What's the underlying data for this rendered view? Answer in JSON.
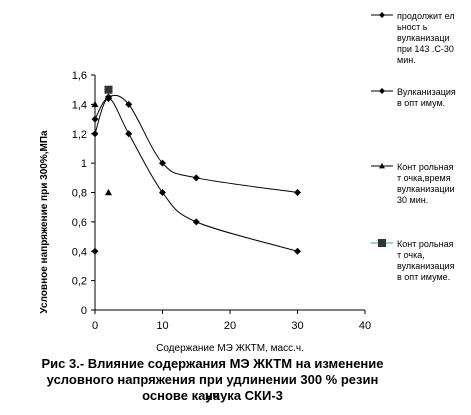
{
  "chart_data": {
    "type": "line",
    "xlabel": "Содержание МЭ ЖКТМ, масс.ч.",
    "ylabel": "Условное напряжение при 300%,МПа",
    "xlim": [
      0,
      40
    ],
    "ylim": [
      0,
      1.6
    ],
    "x_ticks": [
      "0",
      "10",
      "20",
      "30",
      "40"
    ],
    "y_ticks": [
      "0",
      "0,2",
      "0,4",
      "0,6",
      "0,8",
      "1",
      "1,2",
      "1,4",
      "1,6"
    ],
    "grid": false,
    "legend_position": "right",
    "series": [
      {
        "name_lines": [
          "продолжит ел",
          "ьност ь",
          "вулканизаци",
          "при 143 .С-30",
          "мин."
        ],
        "marker": "diamond",
        "line": "smooth",
        "color": "#000000",
        "points": [
          [
            0,
            1.2
          ],
          [
            2,
            1.44
          ],
          [
            5,
            1.2
          ],
          [
            10,
            0.8
          ],
          [
            15,
            0.6
          ],
          [
            30,
            0.4
          ]
        ]
      },
      {
        "name_lines": [
          "Вулканизация",
          "в опт имум."
        ],
        "marker": "diamond",
        "line": "smooth",
        "color": "#000000",
        "points": [
          [
            0,
            1.3
          ],
          [
            2,
            1.45
          ],
          [
            5,
            1.4
          ],
          [
            10,
            1.0
          ],
          [
            15,
            0.9
          ],
          [
            30,
            0.8
          ]
        ]
      },
      {
        "name_lines": [
          "Конт рольная",
          "т очка,время",
          "вулканизации",
          "30 мин."
        ],
        "marker": "triangle",
        "line": "none",
        "color": "#000000",
        "points": [
          [
            0,
            1.4
          ],
          [
            2,
            0.8
          ]
        ]
      },
      {
        "name_lines": [
          "Конт рольная",
          "т очка,",
          "вулканизация",
          "в опт имуме."
        ],
        "marker": "square",
        "line": "none",
        "color": "#000000",
        "legend_line_color": "#00b0c8",
        "points": [
          [
            2,
            1.5
          ]
        ]
      }
    ],
    "extra_points": [
      {
        "marker": "diamond",
        "points": [
          [
            0,
            0.4
          ]
        ]
      }
    ]
  },
  "caption": {
    "line1": "Рис 3.- Влияние содержания МЭ ЖКТМ на изменение",
    "line2": "условного напряжения при удлинении 300 % резин на",
    "line3": "основе каучука СКИ-3"
  }
}
